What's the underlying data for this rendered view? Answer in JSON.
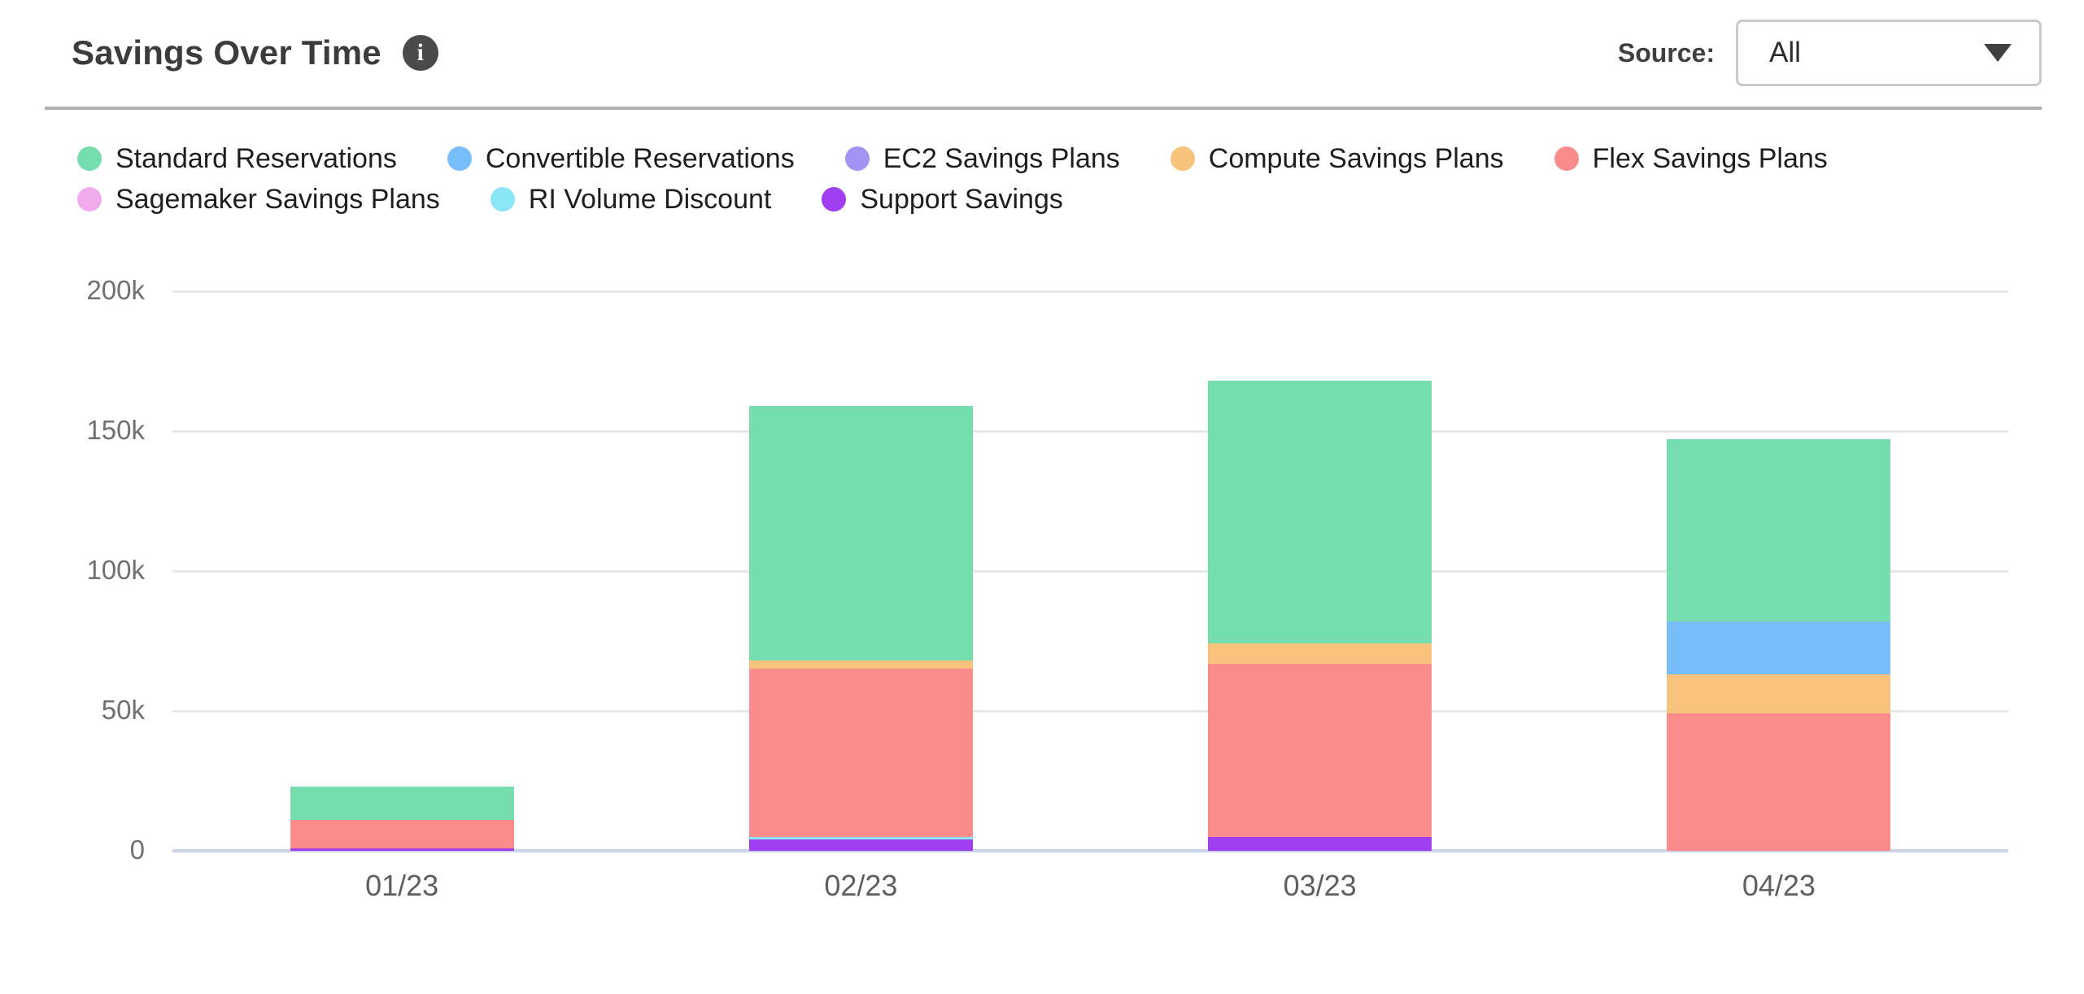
{
  "header": {
    "title": "Savings Over Time",
    "info_icon_glyph": "i",
    "source_label": "Source:",
    "source_value": "All"
  },
  "chart_data": {
    "type": "bar",
    "stacked": true,
    "title": "Savings Over Time",
    "categories": [
      "01/23",
      "02/23",
      "03/23",
      "04/23"
    ],
    "series": [
      {
        "name": "Standard Reservations",
        "color": "#76ddae",
        "values": [
          12000,
          91000,
          94000,
          65000
        ]
      },
      {
        "name": "Convertible Reservations",
        "color": "#76bdf9",
        "values": [
          0,
          0,
          0,
          19000
        ]
      },
      {
        "name": "EC2 Savings Plans",
        "color": "#a393f3",
        "values": [
          0,
          0,
          0,
          0
        ]
      },
      {
        "name": "Compute Savings Plans",
        "color": "#f8c47d",
        "values": [
          0,
          3000,
          7000,
          14000
        ]
      },
      {
        "name": "Flex Savings Plans",
        "color": "#fc8b8b",
        "values": [
          10000,
          60000,
          62000,
          49000
        ]
      },
      {
        "name": "Sagemaker Savings Plans",
        "color": "#f0abec",
        "values": [
          0,
          0,
          0,
          0
        ]
      },
      {
        "name": "RI Volume Discount",
        "color": "#8be6f6",
        "values": [
          0,
          1000,
          0,
          0
        ]
      },
      {
        "name": "Support Savings",
        "color": "#a03ef2",
        "values": [
          1000,
          4000,
          5000,
          0
        ]
      }
    ],
    "stack_order": "reverse-legend",
    "totals": [
      23000,
      159000,
      168000,
      147000
    ],
    "y_ticks": [
      {
        "value": 0,
        "label": "0"
      },
      {
        "value": 50000,
        "label": "50k"
      },
      {
        "value": 100000,
        "label": "100k"
      },
      {
        "value": 150000,
        "label": "150k"
      },
      {
        "value": 200000,
        "label": "200k"
      }
    ],
    "ylim": [
      0,
      200000
    ],
    "xlabel": "",
    "ylabel": "",
    "grid": true,
    "legend_position": "top-left",
    "colors": {
      "gridline": "#e8e8e8",
      "axis_line": "#cbd4e9",
      "tick_text": "#707070",
      "x_label_text": "#5f5f5f",
      "legend_text": "#1e1e1e"
    }
  }
}
